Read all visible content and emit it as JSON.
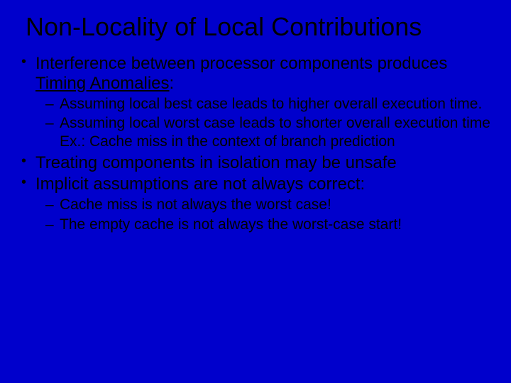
{
  "background_color": "#0000cc",
  "text_color": "#000000",
  "font_family": "Comic Sans MS",
  "title": {
    "text": "Non-Locality of Local Contributions",
    "fontsize": 36
  },
  "body_fontsize": 24,
  "sub_fontsize": 21,
  "bullets": [
    {
      "prefix": "Interference between processor components produces ",
      "emph": "Timing Anomalies",
      "colon": ":",
      "sub": [
        "Assuming local best case leads to higher overall execution time.",
        "Assuming local worst case leads to shorter overall execution time\nEx.: Cache miss in the context of branch prediction"
      ]
    },
    {
      "prefix": "Treating components in isolation may be unsafe"
    },
    {
      "prefix": "Implicit assumptions are not always correct:",
      "sub": [
        "Cache miss is not always the worst case!",
        "The empty cache is not always the worst-case start!"
      ]
    }
  ]
}
